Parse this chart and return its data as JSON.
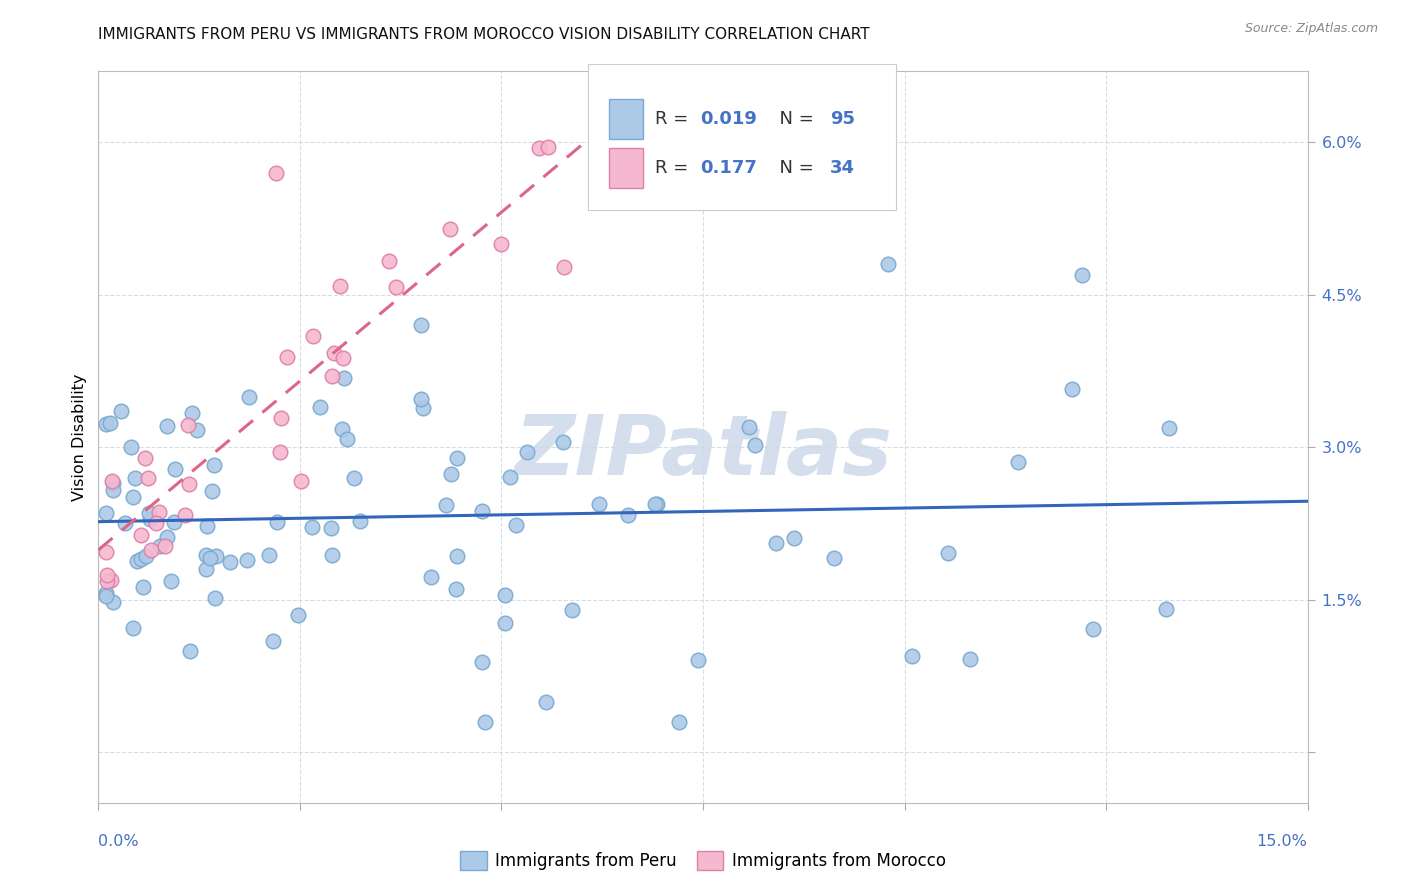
{
  "title": "IMMIGRANTS FROM PERU VS IMMIGRANTS FROM MOROCCO VISION DISABILITY CORRELATION CHART",
  "source": "Source: ZipAtlas.com",
  "ylabel": "Vision Disability",
  "xmin": 0.0,
  "xmax": 0.15,
  "ymin": -0.005,
  "ymax": 0.067,
  "yticks": [
    0.0,
    0.015,
    0.03,
    0.045,
    0.06
  ],
  "ytick_labels": [
    "",
    "1.5%",
    "3.0%",
    "4.5%",
    "6.0%"
  ],
  "peru_R": "0.019",
  "peru_N": "95",
  "morocco_R": "0.177",
  "morocco_N": "34",
  "peru_fill": "#adc9e8",
  "peru_edge": "#7aaad0",
  "morocco_fill": "#f5b8cf",
  "morocco_edge": "#e080a8",
  "peru_line": "#3366bb",
  "morocco_line": "#dd6688",
  "watermark": "ZIPatlas",
  "watermark_color": "#cdd9ea",
  "grid_color": "#d5dde8",
  "axis_color": "#4472c4",
  "bg_color": "#ffffff",
  "legend_text_color": "#4472c4",
  "legend_label_color": "#333333"
}
